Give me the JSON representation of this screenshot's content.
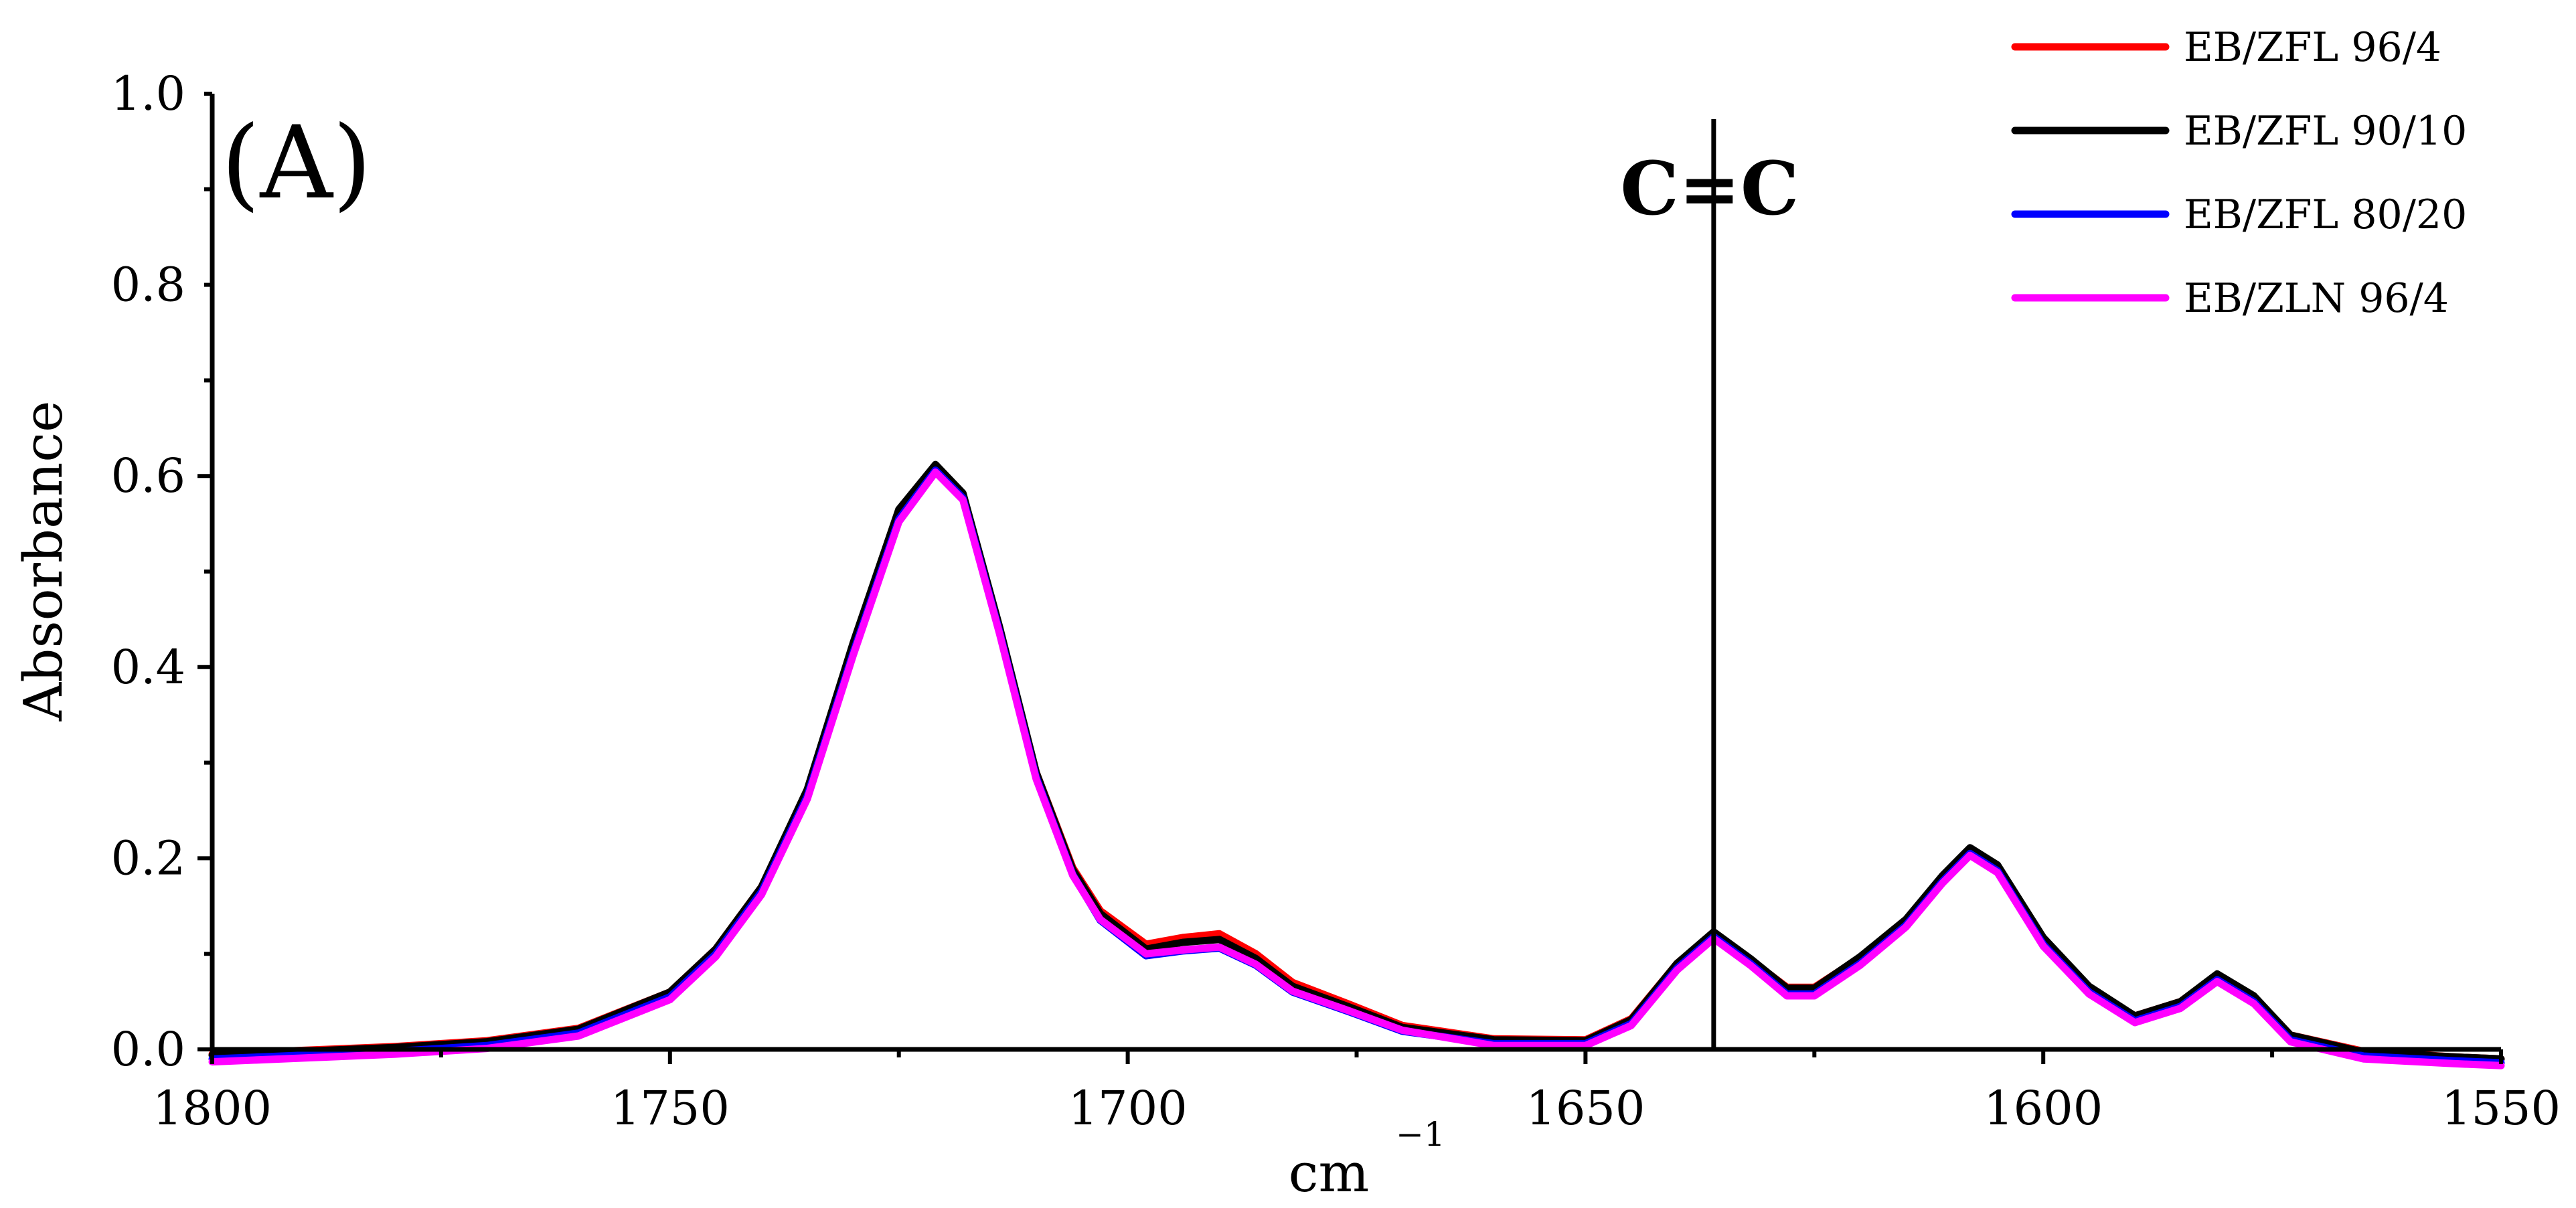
{
  "chart_data": {
    "type": "line",
    "panel_label": "(A)",
    "title": "",
    "xlabel": "cm",
    "xlabel_superscript": "−1",
    "ylabel": "Absorbance",
    "xlim": [
      1800,
      1550
    ],
    "ylim": [
      0.0,
      1.0
    ],
    "x_reversed": true,
    "xticks": [
      1800,
      1750,
      1700,
      1650,
      1600,
      1550
    ],
    "yticks": [
      "0.0",
      "0.2",
      "0.4",
      "0.6",
      "0.8",
      "1.0"
    ],
    "grid": false,
    "legend_position": "top-right",
    "annotation": {
      "text": "C=C",
      "x": 1636
    },
    "series": [
      {
        "name": "EB/ZFL 96/4",
        "color": "#ff0000",
        "points": [
          [
            1800,
            -0.005
          ],
          [
            1790,
            -0.001
          ],
          [
            1780,
            0.003
          ],
          [
            1770,
            0.009
          ],
          [
            1760,
            0.022
          ],
          [
            1750,
            0.06
          ],
          [
            1745,
            0.105
          ],
          [
            1740,
            0.17
          ],
          [
            1735,
            0.27
          ],
          [
            1730,
            0.42
          ],
          [
            1725,
            0.56
          ],
          [
            1721,
            0.61
          ],
          [
            1718,
            0.58
          ],
          [
            1714,
            0.44
          ],
          [
            1710,
            0.29
          ],
          [
            1706,
            0.19
          ],
          [
            1703,
            0.145
          ],
          [
            1698,
            0.11
          ],
          [
            1694,
            0.117
          ],
          [
            1690,
            0.121
          ],
          [
            1686,
            0.1
          ],
          [
            1682,
            0.07
          ],
          [
            1676,
            0.048
          ],
          [
            1670,
            0.025
          ],
          [
            1660,
            0.011
          ],
          [
            1650,
            0.01
          ],
          [
            1645,
            0.032
          ],
          [
            1640,
            0.09
          ],
          [
            1636,
            0.122
          ],
          [
            1632,
            0.094
          ],
          [
            1628,
            0.065
          ],
          [
            1625,
            0.065
          ],
          [
            1620,
            0.096
          ],
          [
            1615,
            0.135
          ],
          [
            1611,
            0.18
          ],
          [
            1608,
            0.208
          ],
          [
            1605,
            0.19
          ],
          [
            1600,
            0.115
          ],
          [
            1595,
            0.065
          ],
          [
            1590,
            0.035
          ],
          [
            1585,
            0.05
          ],
          [
            1581,
            0.078
          ],
          [
            1577,
            0.055
          ],
          [
            1573,
            0.015
          ],
          [
            1565,
            -0.002
          ],
          [
            1555,
            -0.008
          ],
          [
            1550,
            -0.01
          ]
        ]
      },
      {
        "name": "EB/ZFL 90/10",
        "color": "#000000",
        "points": [
          [
            1800,
            -0.006
          ],
          [
            1790,
            -0.002
          ],
          [
            1780,
            0.002
          ],
          [
            1770,
            0.008
          ],
          [
            1760,
            0.021
          ],
          [
            1750,
            0.06
          ],
          [
            1745,
            0.105
          ],
          [
            1740,
            0.17
          ],
          [
            1735,
            0.272
          ],
          [
            1730,
            0.425
          ],
          [
            1725,
            0.565
          ],
          [
            1721,
            0.612
          ],
          [
            1718,
            0.582
          ],
          [
            1714,
            0.442
          ],
          [
            1710,
            0.29
          ],
          [
            1706,
            0.188
          ],
          [
            1703,
            0.142
          ],
          [
            1698,
            0.105
          ],
          [
            1694,
            0.112
          ],
          [
            1690,
            0.115
          ],
          [
            1686,
            0.095
          ],
          [
            1682,
            0.066
          ],
          [
            1676,
            0.045
          ],
          [
            1670,
            0.023
          ],
          [
            1660,
            0.01
          ],
          [
            1650,
            0.009
          ],
          [
            1645,
            0.031
          ],
          [
            1640,
            0.09
          ],
          [
            1636,
            0.123
          ],
          [
            1632,
            0.095
          ],
          [
            1628,
            0.064
          ],
          [
            1625,
            0.064
          ],
          [
            1620,
            0.097
          ],
          [
            1615,
            0.136
          ],
          [
            1611,
            0.182
          ],
          [
            1608,
            0.211
          ],
          [
            1605,
            0.193
          ],
          [
            1600,
            0.117
          ],
          [
            1595,
            0.066
          ],
          [
            1590,
            0.035
          ],
          [
            1585,
            0.05
          ],
          [
            1581,
            0.079
          ],
          [
            1577,
            0.056
          ],
          [
            1573,
            0.015
          ],
          [
            1565,
            -0.003
          ],
          [
            1555,
            -0.008
          ],
          [
            1550,
            -0.01
          ]
        ]
      },
      {
        "name": "EB/ZFL 80/20",
        "color": "#0000ff",
        "points": [
          [
            1800,
            -0.01
          ],
          [
            1790,
            -0.006
          ],
          [
            1780,
            -0.002
          ],
          [
            1770,
            0.004
          ],
          [
            1760,
            0.017
          ],
          [
            1750,
            0.055
          ],
          [
            1745,
            0.1
          ],
          [
            1740,
            0.165
          ],
          [
            1735,
            0.265
          ],
          [
            1730,
            0.415
          ],
          [
            1725,
            0.555
          ],
          [
            1721,
            0.606
          ],
          [
            1718,
            0.577
          ],
          [
            1714,
            0.437
          ],
          [
            1710,
            0.285
          ],
          [
            1706,
            0.183
          ],
          [
            1703,
            0.135
          ],
          [
            1698,
            0.098
          ],
          [
            1694,
            0.103
          ],
          [
            1690,
            0.106
          ],
          [
            1686,
            0.088
          ],
          [
            1682,
            0.06
          ],
          [
            1676,
            0.04
          ],
          [
            1670,
            0.019
          ],
          [
            1660,
            0.006
          ],
          [
            1650,
            0.006
          ],
          [
            1645,
            0.027
          ],
          [
            1640,
            0.085
          ],
          [
            1636,
            0.118
          ],
          [
            1632,
            0.09
          ],
          [
            1628,
            0.058
          ],
          [
            1625,
            0.058
          ],
          [
            1620,
            0.09
          ],
          [
            1615,
            0.13
          ],
          [
            1611,
            0.176
          ],
          [
            1608,
            0.205
          ],
          [
            1605,
            0.187
          ],
          [
            1600,
            0.11
          ],
          [
            1595,
            0.06
          ],
          [
            1590,
            0.03
          ],
          [
            1585,
            0.045
          ],
          [
            1581,
            0.073
          ],
          [
            1577,
            0.05
          ],
          [
            1573,
            0.01
          ],
          [
            1565,
            -0.007
          ],
          [
            1555,
            -0.012
          ],
          [
            1550,
            -0.014
          ]
        ]
      },
      {
        "name": "EB/ZLN 96/4",
        "color": "#ff00ff",
        "points": [
          [
            1800,
            -0.013
          ],
          [
            1790,
            -0.009
          ],
          [
            1780,
            -0.005
          ],
          [
            1770,
            0.001
          ],
          [
            1760,
            0.014
          ],
          [
            1750,
            0.052
          ],
          [
            1745,
            0.097
          ],
          [
            1740,
            0.162
          ],
          [
            1735,
            0.262
          ],
          [
            1730,
            0.412
          ],
          [
            1725,
            0.552
          ],
          [
            1721,
            0.604
          ],
          [
            1718,
            0.575
          ],
          [
            1714,
            0.435
          ],
          [
            1710,
            0.283
          ],
          [
            1706,
            0.182
          ],
          [
            1703,
            0.136
          ],
          [
            1698,
            0.1
          ],
          [
            1694,
            0.104
          ],
          [
            1690,
            0.107
          ],
          [
            1686,
            0.089
          ],
          [
            1682,
            0.061
          ],
          [
            1676,
            0.041
          ],
          [
            1670,
            0.02
          ],
          [
            1660,
            0.004
          ],
          [
            1650,
            0.004
          ],
          [
            1645,
            0.025
          ],
          [
            1640,
            0.083
          ],
          [
            1636,
            0.116
          ],
          [
            1632,
            0.088
          ],
          [
            1628,
            0.056
          ],
          [
            1625,
            0.056
          ],
          [
            1620,
            0.088
          ],
          [
            1615,
            0.128
          ],
          [
            1611,
            0.174
          ],
          [
            1608,
            0.203
          ],
          [
            1605,
            0.185
          ],
          [
            1600,
            0.108
          ],
          [
            1595,
            0.058
          ],
          [
            1590,
            0.028
          ],
          [
            1585,
            0.043
          ],
          [
            1581,
            0.071
          ],
          [
            1577,
            0.048
          ],
          [
            1573,
            0.008
          ],
          [
            1565,
            -0.01
          ],
          [
            1555,
            -0.015
          ],
          [
            1550,
            -0.017
          ]
        ]
      }
    ]
  }
}
